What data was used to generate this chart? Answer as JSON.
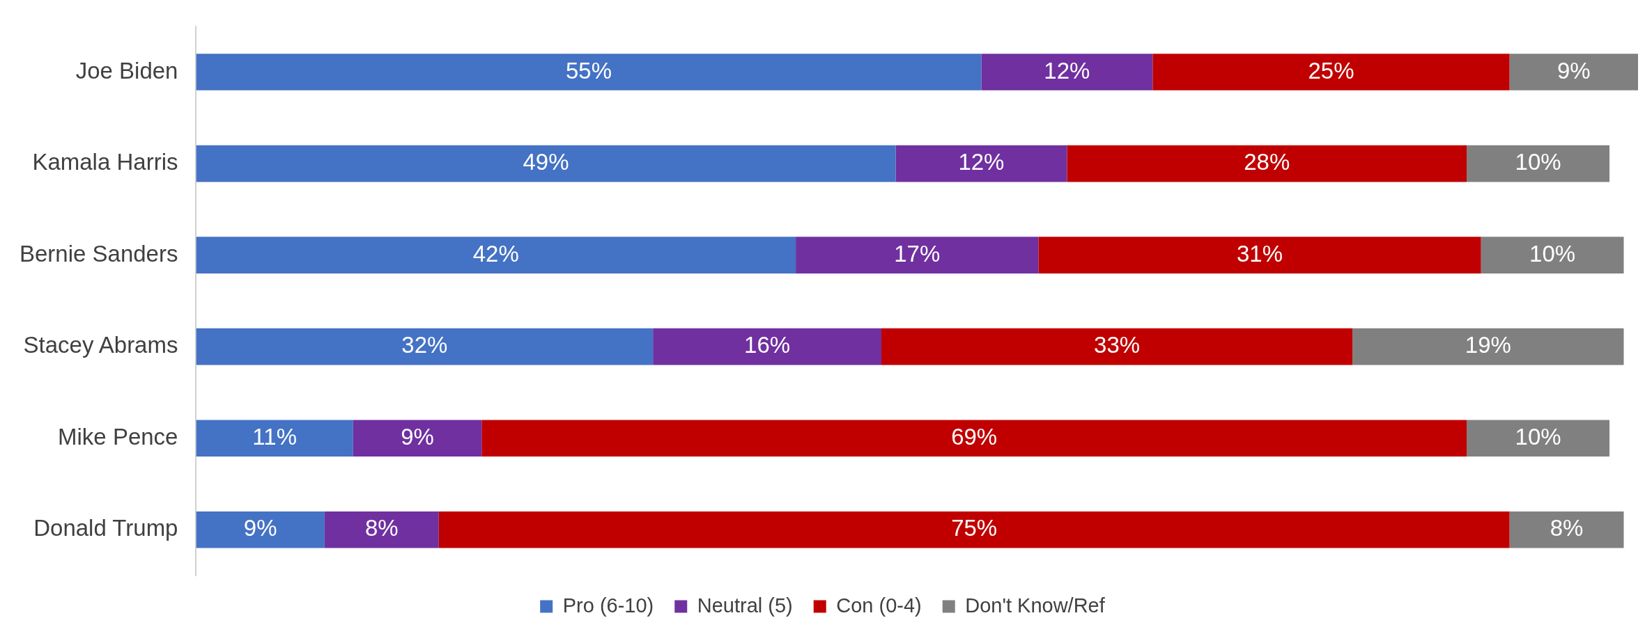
{
  "chart_data": {
    "type": "bar",
    "orientation": "horizontal",
    "stacked": true,
    "legend": "bottom",
    "tick_labels": "y",
    "categories": [
      "Joe Biden",
      "Kamala Harris",
      "Bernie Sanders",
      "Stacey Abrams",
      "Mike Pence",
      "Donald Trump"
    ],
    "series": [
      {
        "name": "Pro (6-10)",
        "color": "#4472c4",
        "values": [
          55,
          49,
          42,
          32,
          11,
          9
        ],
        "value_labels": [
          "55%",
          "49%",
          "42%",
          "32%",
          "11%",
          "9%"
        ]
      },
      {
        "name": "Neutral (5)",
        "color": "#7030a0",
        "values": [
          12,
          12,
          17,
          16,
          9,
          8
        ],
        "value_labels": [
          "12%",
          "12%",
          "17%",
          "16%",
          "9%",
          "8%"
        ]
      },
      {
        "name": "Con (0-4)",
        "color": "#c00000",
        "values": [
          25,
          28,
          31,
          33,
          69,
          75
        ],
        "value_labels": [
          "25%",
          "28%",
          "31%",
          "33%",
          "69%",
          "75%"
        ]
      },
      {
        "name": "Don't Know/Ref",
        "color": "#808080",
        "values": [
          9,
          10,
          10,
          19,
          10,
          8
        ],
        "value_labels": [
          "9%",
          "10%",
          "10%",
          "19%",
          "10%",
          "8%"
        ]
      }
    ]
  }
}
